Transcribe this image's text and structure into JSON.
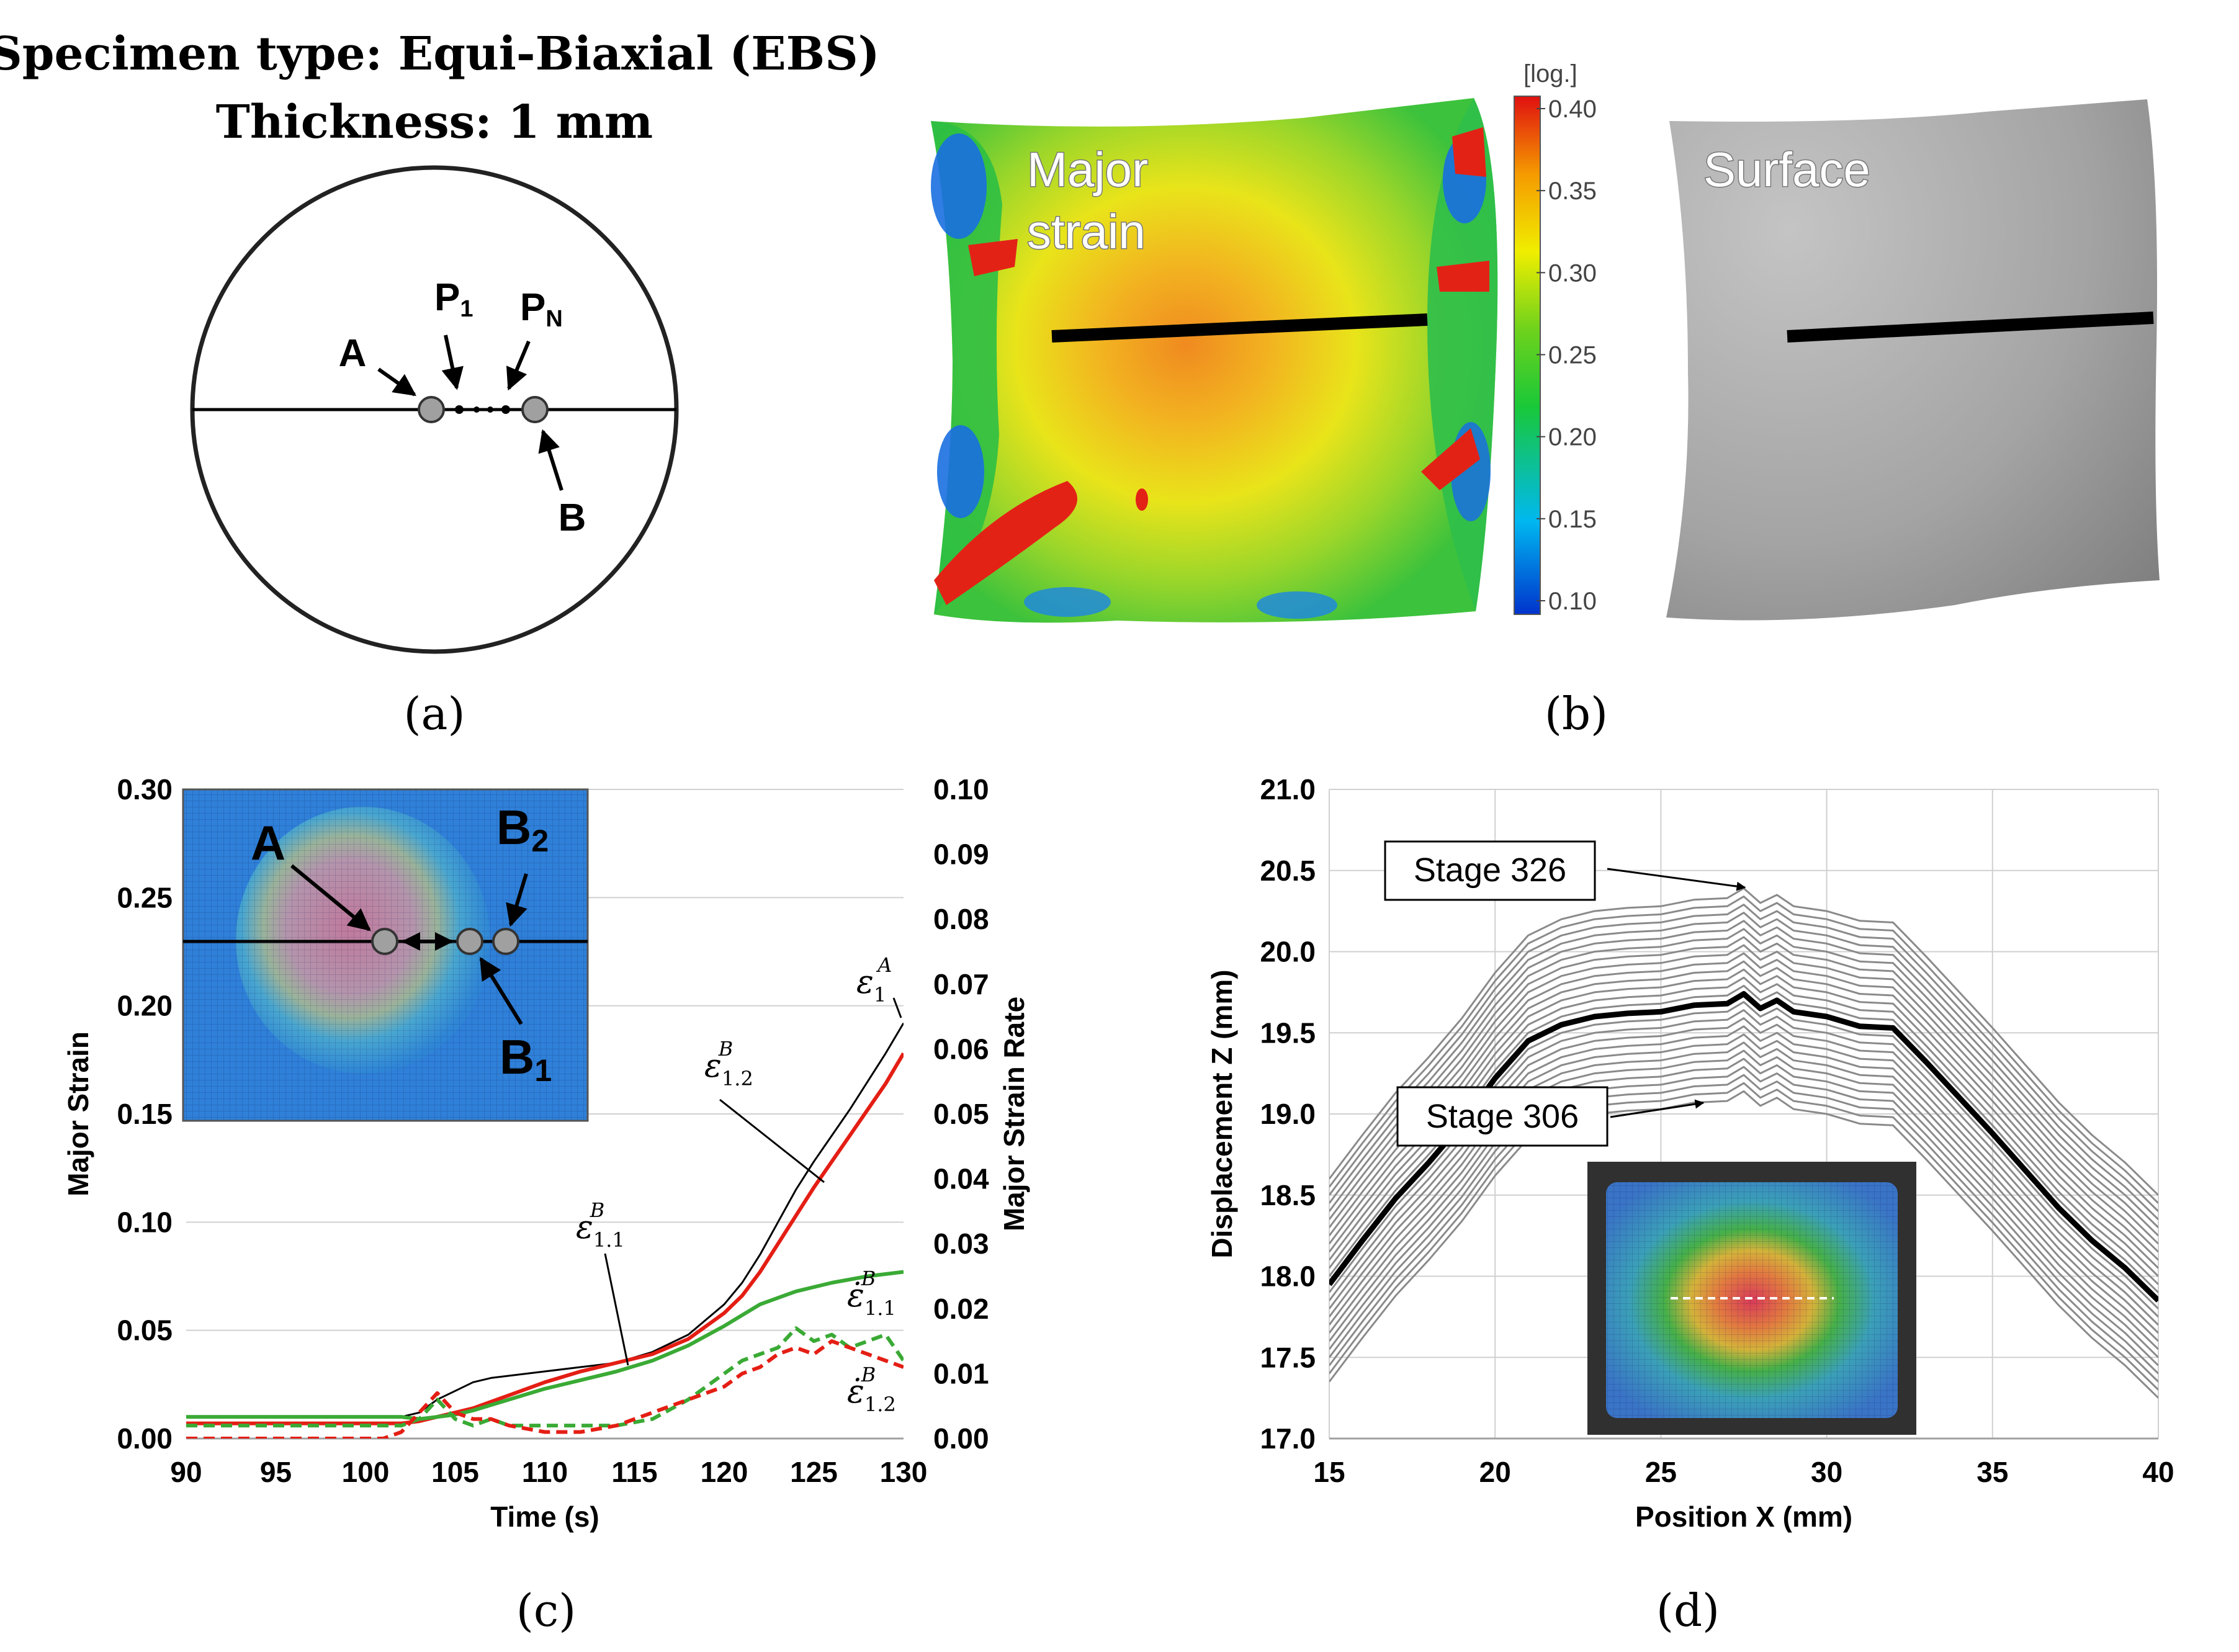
{
  "panel_a": {
    "title_line1": "Specimen type: Equi-Biaxial (EBS)",
    "title_line2": "Thickness: 1 mm",
    "label_A": "A",
    "label_B": "B",
    "label_P": "P",
    "sub_P1": "1",
    "sub_PN": "N",
    "caption": "(a)"
  },
  "panel_b": {
    "label_major_line1": "Major",
    "label_major_line2": "strain",
    "label_surface": "Surface",
    "colorbar_title": "[log.]",
    "colorbar_ticks": [
      "0.40",
      "0.35",
      "0.30",
      "0.25",
      "0.20",
      "0.15",
      "0.10"
    ],
    "caption": "(b)"
  },
  "panel_c": {
    "caption": "(c)",
    "inset_label_A": "A",
    "inset_label_B": "B",
    "inset_sub_B2": "2",
    "inset_sub_B1": "1",
    "ann_eps1A": "ε",
    "ann_sub_1": "1",
    "ann_sup_A": "A",
    "ann_sup_B": "B",
    "ann_sub_12": "1.2",
    "ann_sub_11": "1.1",
    "ann_rate_sym": "ε̇"
  },
  "panel_d": {
    "caption": "(d)",
    "label_stage_high": "Stage  326",
    "label_stage_low": "Stage  306"
  },
  "chart_data": [
    {
      "type": "line",
      "title": "",
      "xlabel": "Time (s)",
      "ylabel": "Major Strain",
      "y2label": "Major Strain Rate",
      "xlim": [
        90,
        130
      ],
      "ylim": [
        0,
        0.3
      ],
      "y2lim": [
        0,
        0.1
      ],
      "xticks": [
        90,
        95,
        100,
        105,
        110,
        115,
        120,
        125,
        130
      ],
      "yticks": [
        "0.00",
        "0.05",
        "0.10",
        "0.15",
        "0.20",
        "0.25",
        "0.30"
      ],
      "y2ticks": [
        "0.00",
        "0.01",
        "0.02",
        "0.03",
        "0.04",
        "0.05",
        "0.06",
        "0.07",
        "0.08",
        "0.09",
        "0.10"
      ],
      "series": [
        {
          "name": "strain A",
          "color": "#000000",
          "style": "solid",
          "axis": "y",
          "x": [
            90,
            100,
            102,
            103,
            104,
            105,
            106,
            107,
            108,
            110,
            112,
            114,
            116,
            118,
            120,
            121,
            122,
            123,
            124,
            125,
            126,
            127,
            128,
            129,
            130
          ],
          "y": [
            0.01,
            0.01,
            0.01,
            0.012,
            0.018,
            0.022,
            0.026,
            0.028,
            0.029,
            0.031,
            0.033,
            0.035,
            0.04,
            0.048,
            0.062,
            0.072,
            0.085,
            0.1,
            0.115,
            0.128,
            0.14,
            0.152,
            0.165,
            0.178,
            0.192
          ]
        },
        {
          "name": "strain B1.2",
          "color": "#e41e14",
          "style": "solid",
          "axis": "y",
          "x": [
            90,
            100,
            102,
            103,
            104,
            105,
            106,
            108,
            110,
            112,
            114,
            116,
            118,
            120,
            121,
            122,
            123,
            124,
            125,
            126,
            127,
            128,
            129,
            130
          ],
          "y": [
            0.007,
            0.007,
            0.007,
            0.008,
            0.01,
            0.012,
            0.014,
            0.02,
            0.026,
            0.031,
            0.035,
            0.039,
            0.046,
            0.058,
            0.066,
            0.077,
            0.09,
            0.103,
            0.116,
            0.128,
            0.14,
            0.152,
            0.164,
            0.178
          ]
        },
        {
          "name": "strain B1.1",
          "color": "#3aaa35",
          "style": "solid",
          "axis": "y",
          "x": [
            90,
            100,
            102,
            103,
            104,
            105,
            106,
            108,
            110,
            112,
            114,
            116,
            118,
            120,
            122,
            124,
            126,
            128,
            130
          ],
          "y": [
            0.01,
            0.01,
            0.01,
            0.009,
            0.01,
            0.011,
            0.013,
            0.018,
            0.023,
            0.027,
            0.031,
            0.036,
            0.043,
            0.052,
            0.062,
            0.068,
            0.072,
            0.075,
            0.077
          ]
        },
        {
          "name": "rate B1.1",
          "color": "#3aaa35",
          "style": "dashed",
          "axis": "y2",
          "x": [
            90,
            100,
            102,
            103,
            104,
            105,
            106,
            107,
            108,
            110,
            112,
            114,
            116,
            118,
            120,
            121,
            122,
            123,
            124,
            125,
            126,
            127,
            128,
            129,
            130
          ],
          "y": [
            0.002,
            0.002,
            0.002,
            0.003,
            0.006,
            0.003,
            0.002,
            0.003,
            0.002,
            0.002,
            0.002,
            0.002,
            0.003,
            0.006,
            0.01,
            0.012,
            0.013,
            0.014,
            0.017,
            0.015,
            0.016,
            0.014,
            0.015,
            0.016,
            0.012
          ]
        },
        {
          "name": "rate B1.2",
          "color": "#e41e14",
          "style": "dashed",
          "axis": "y2",
          "x": [
            90,
            100,
            101,
            102,
            103,
            104,
            105,
            106,
            107,
            108,
            110,
            112,
            114,
            116,
            118,
            120,
            121,
            122,
            123,
            124,
            125,
            126,
            127,
            128,
            129,
            130
          ],
          "y": [
            0.0,
            0.0,
            0.0,
            0.001,
            0.004,
            0.007,
            0.004,
            0.003,
            0.003,
            0.002,
            0.001,
            0.001,
            0.002,
            0.004,
            0.006,
            0.008,
            0.01,
            0.011,
            0.013,
            0.014,
            0.013,
            0.015,
            0.014,
            0.013,
            0.012,
            0.011
          ]
        }
      ]
    },
    {
      "type": "line",
      "title": "",
      "xlabel": "Position X (mm)",
      "ylabel": "Displacement Z (mm)",
      "xlim": [
        15,
        40
      ],
      "ylim": [
        17.0,
        21.0
      ],
      "xticks": [
        15,
        20,
        25,
        30,
        35,
        40
      ],
      "yticks": [
        "17.0",
        "17.5",
        "18.0",
        "18.5",
        "19.0",
        "19.5",
        "20.0",
        "20.5",
        "21.0"
      ],
      "stages": {
        "first": 306,
        "last": 326,
        "highlighted_offset": 0.6
      },
      "base_profile": {
        "x": [
          15,
          16,
          17,
          18,
          19,
          20,
          21,
          22,
          23,
          24,
          25,
          26,
          27,
          27.5,
          28,
          28.5,
          29,
          30,
          31,
          32,
          33,
          34,
          35,
          36,
          37,
          38,
          39,
          40
        ],
        "y": [
          17.35,
          17.62,
          17.88,
          18.1,
          18.34,
          18.62,
          18.85,
          18.95,
          19.0,
          19.02,
          19.03,
          19.07,
          19.08,
          19.14,
          19.05,
          19.1,
          19.03,
          19.0,
          18.94,
          18.93,
          18.72,
          18.5,
          18.28,
          18.05,
          17.82,
          17.62,
          17.45,
          17.25
        ]
      },
      "offsets": [
        0.0,
        0.05,
        0.1,
        0.15,
        0.2,
        0.25,
        0.3,
        0.35,
        0.4,
        0.45,
        0.5,
        0.55,
        0.6,
        0.65,
        0.7,
        0.75,
        0.8,
        0.85,
        0.9,
        0.95,
        1.0,
        1.05,
        1.1,
        1.15,
        1.2,
        1.25
      ]
    }
  ]
}
